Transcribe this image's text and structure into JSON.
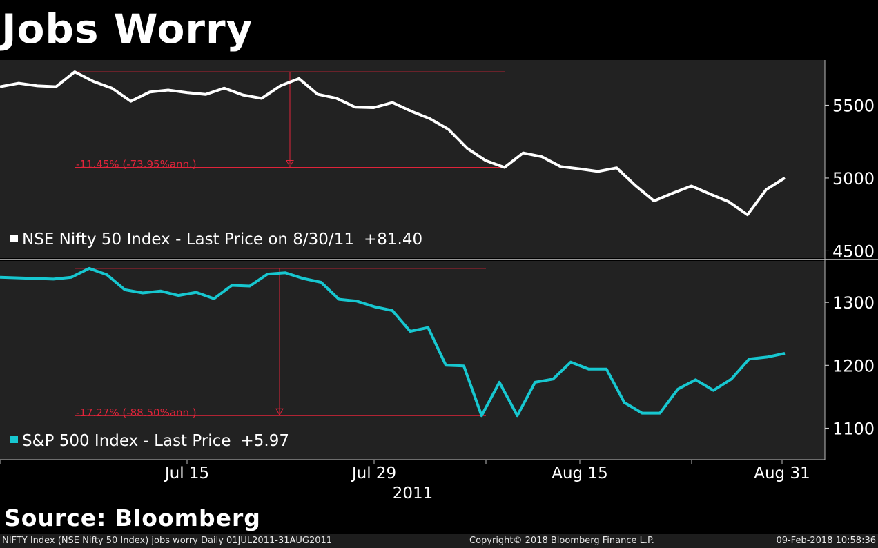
{
  "title": "Jobs Worry",
  "source": "Source: Bloomberg",
  "footer": {
    "left": "NIFTY Index (NSE Nifty 50 Index) jobs worry  Daily 01JUL2011-31AUG2011",
    "center": "Copyright© 2018 Bloomberg Finance L.P.",
    "right": "09-Feb-2018 10:58:36"
  },
  "colors": {
    "background": "#000000",
    "panel": "#222222",
    "nifty_line": "#ffffff",
    "sp_line": "#17c7d0",
    "annotation": "#e0243a"
  },
  "chart_data": [
    {
      "type": "line",
      "series": [
        {
          "name": "NSE Nifty 50 Index - Last Price on 8/30/11",
          "change_label": "+81.40",
          "color": "#ffffff",
          "values": [
            5627,
            5651,
            5633,
            5627,
            5729,
            5663,
            5616,
            5527,
            5590,
            5604,
            5587,
            5574,
            5617,
            5570,
            5547,
            5633,
            5683,
            5575,
            5548,
            5487,
            5483,
            5518,
            5459,
            5408,
            5334,
            5204,
            5119,
            5073,
            5172,
            5146,
            5079,
            5063,
            5045,
            5070,
            4949,
            4843,
            4896,
            4945,
            4890,
            4837,
            4748,
            4920,
            5001
          ]
        }
      ],
      "y_ticks": [
        4500,
        5000,
        5500
      ],
      "ylim": [
        4450,
        5810
      ],
      "annotation": {
        "label": "-11.45% (-73.95%ann.)",
        "from_value": 5729,
        "to_value": 5073
      }
    },
    {
      "type": "line",
      "series": [
        {
          "name": "S&P 500 Index - Last Price",
          "change_label": "+5.97",
          "color": "#17c7d0",
          "values": [
            1340,
            1339,
            1338,
            1337,
            1340,
            1354,
            1344,
            1320,
            1315,
            1318,
            1311,
            1316,
            1306,
            1327,
            1326,
            1345,
            1347,
            1338,
            1332,
            1305,
            1302,
            1293,
            1287,
            1254,
            1260,
            1200,
            1199,
            1120,
            1173,
            1120,
            1173,
            1178,
            1205,
            1194,
            1194,
            1141,
            1124,
            1124,
            1162,
            1177,
            1160,
            1178,
            1210,
            1213,
            1219
          ]
        }
      ],
      "y_ticks": [
        1100,
        1200,
        1300
      ],
      "ylim": [
        1050,
        1366
      ],
      "annotation": {
        "label": "-17.27% (-88.50%ann.)",
        "from_value": 1354,
        "to_value": 1120
      }
    }
  ],
  "x_axis": {
    "ticks": [
      "Jul 15",
      "Jul 29",
      "Aug 15",
      "Aug 31"
    ],
    "year_label": "2011"
  }
}
